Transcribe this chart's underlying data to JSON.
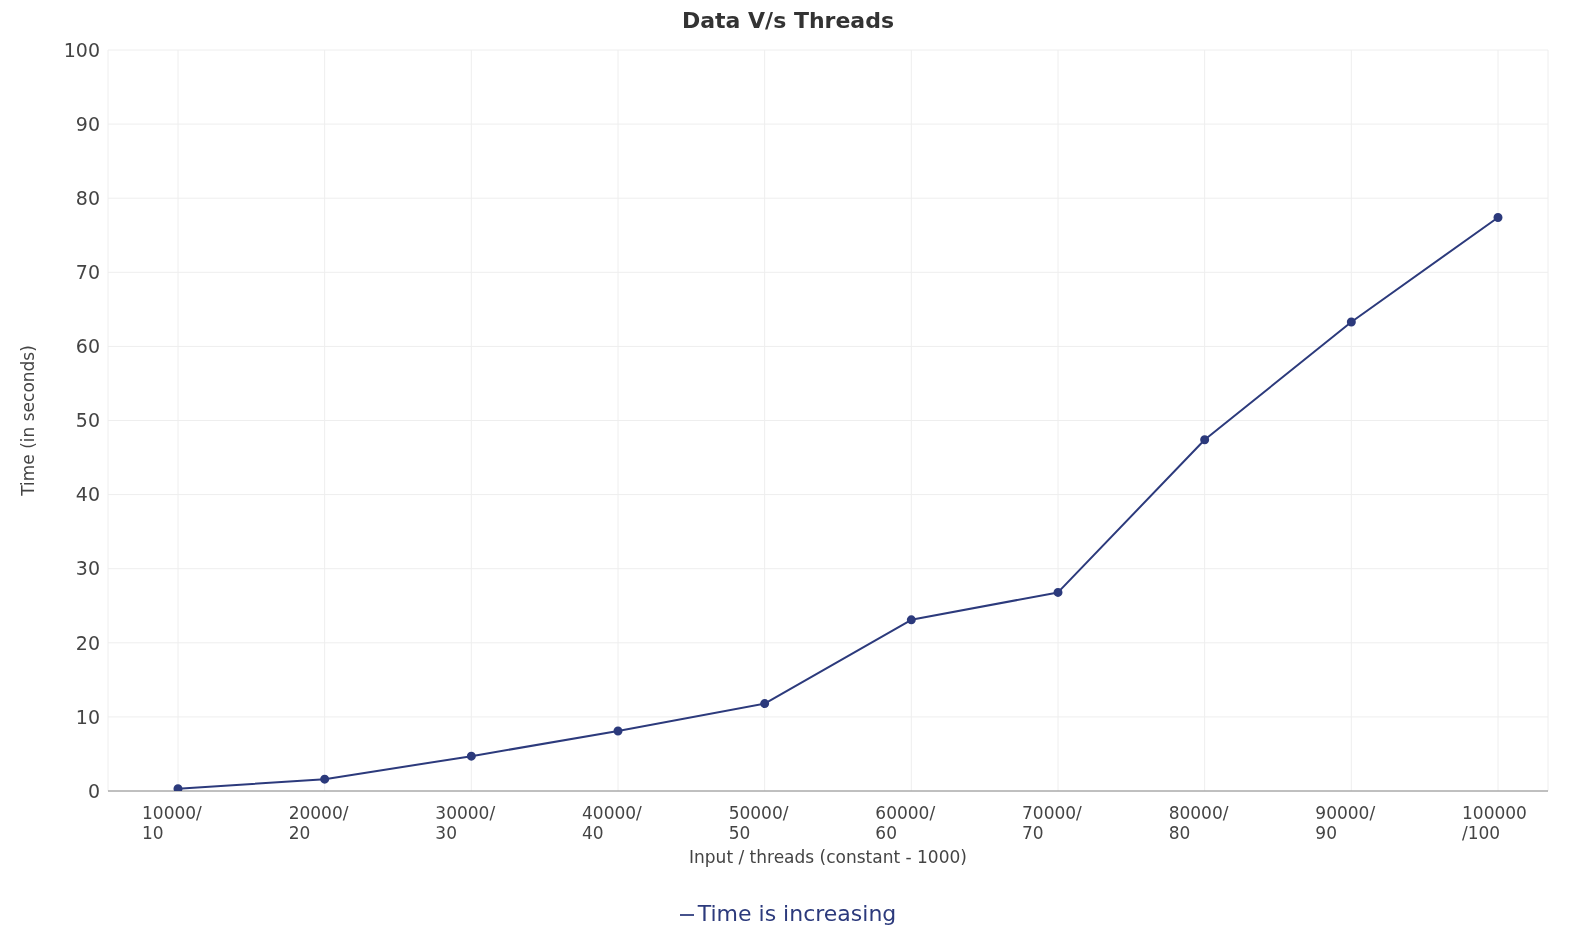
{
  "chart_data": {
    "type": "line",
    "title": "Data V/s Threads",
    "xlabel": "Input / threads (constant - 1000)",
    "ylabel": "Time (in seconds)",
    "categories": [
      "10000/\n10",
      "20000/\n20",
      "30000/\n30",
      "40000/\n40",
      "50000/\n50",
      "60000/\n60",
      "70000/\n70",
      "80000/\n80",
      "90000/\n90",
      "100000\n/100"
    ],
    "series": [
      {
        "name": "Time is increasing",
        "color": "#2c3a7c",
        "values": [
          0.3,
          1.6,
          4.7,
          8.1,
          11.8,
          23.1,
          26.8,
          47.4,
          63.3,
          77.4
        ]
      }
    ],
    "ylim": [
      0,
      100
    ],
    "yticks": [
      0,
      10,
      20,
      30,
      40,
      50,
      60,
      70,
      80,
      90,
      100
    ],
    "grid": true,
    "legend": "bottom",
    "marker": "circle",
    "line_style": "solid"
  }
}
